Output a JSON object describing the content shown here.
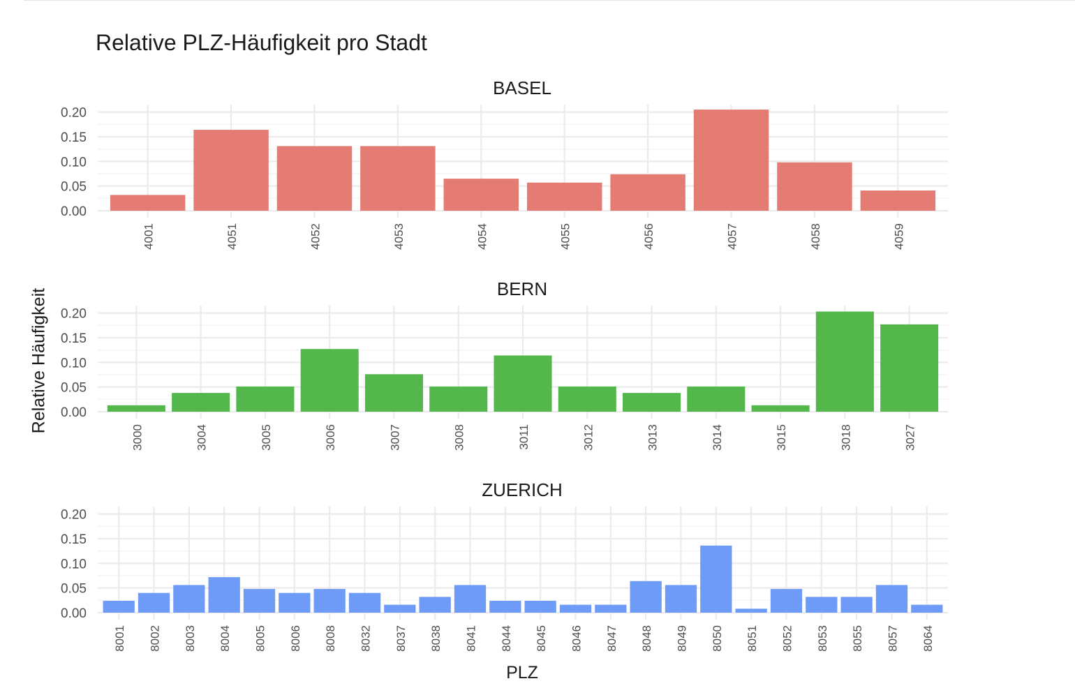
{
  "title": "Relative PLZ-Häufigkeit pro Stadt",
  "ylabel": "Relative Häufigkeit",
  "xlabel": "PLZ",
  "chart_data": [
    {
      "type": "bar",
      "facet": "BASEL",
      "color": "#E57C74",
      "ylim": [
        0,
        0.2
      ],
      "yticks": [
        "0.00",
        "0.05",
        "0.10",
        "0.15",
        "0.20"
      ],
      "categories": [
        "4001",
        "4051",
        "4052",
        "4053",
        "4054",
        "4055",
        "4056",
        "4057",
        "4058",
        "4059"
      ],
      "values": [
        0.032,
        0.164,
        0.131,
        0.131,
        0.065,
        0.057,
        0.074,
        0.205,
        0.098,
        0.041
      ]
    },
    {
      "type": "bar",
      "facet": "BERN",
      "color": "#53B74C",
      "ylim": [
        0,
        0.2
      ],
      "yticks": [
        "0.00",
        "0.05",
        "0.10",
        "0.15",
        "0.20"
      ],
      "categories": [
        "3000",
        "3004",
        "3005",
        "3006",
        "3007",
        "3008",
        "3011",
        "3012",
        "3013",
        "3014",
        "3015",
        "3018",
        "3027"
      ],
      "values": [
        0.013,
        0.038,
        0.051,
        0.127,
        0.076,
        0.051,
        0.114,
        0.051,
        0.038,
        0.051,
        0.013,
        0.203,
        0.177
      ]
    },
    {
      "type": "bar",
      "facet": "ZUERICH",
      "color": "#6F9BF8",
      "ylim": [
        0,
        0.2
      ],
      "yticks": [
        "0.00",
        "0.05",
        "0.10",
        "0.15",
        "0.20"
      ],
      "categories": [
        "8001",
        "8002",
        "8003",
        "8004",
        "8005",
        "8006",
        "8008",
        "8032",
        "8037",
        "8038",
        "8041",
        "8044",
        "8045",
        "8046",
        "8047",
        "8048",
        "8049",
        "8050",
        "8051",
        "8052",
        "8053",
        "8055",
        "8057",
        "8064"
      ],
      "values": [
        0.024,
        0.04,
        0.056,
        0.072,
        0.048,
        0.04,
        0.048,
        0.04,
        0.016,
        0.032,
        0.056,
        0.024,
        0.024,
        0.016,
        0.016,
        0.064,
        0.056,
        0.136,
        0.008,
        0.048,
        0.032,
        0.032,
        0.056,
        0.016
      ]
    }
  ]
}
